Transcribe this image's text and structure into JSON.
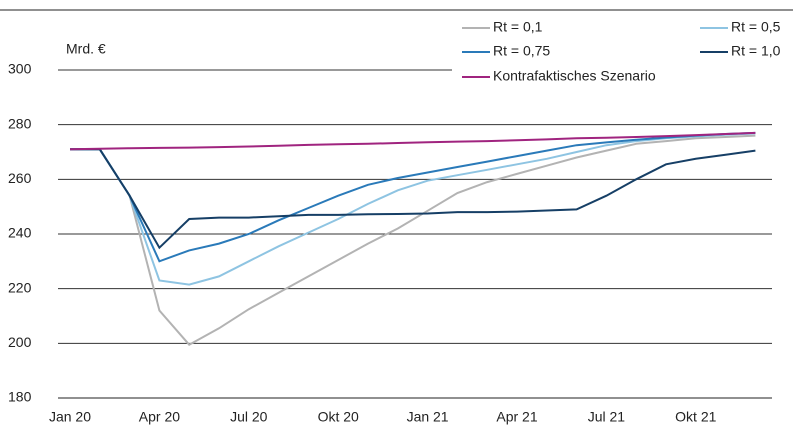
{
  "chart_data": {
    "type": "line",
    "unit_label": "Mrd. €",
    "categories": [
      "Jan 20",
      null,
      null,
      "Apr 20",
      null,
      null,
      "Jul 20",
      null,
      null,
      "Okt 20",
      null,
      null,
      "Jan 21",
      null,
      null,
      "Apr 21",
      null,
      null,
      "Jul 21",
      null,
      null,
      "Okt 21",
      null,
      null
    ],
    "series": [
      {
        "name": "Rt = 0,1",
        "color": "#b3b3b3",
        "values": [
          271,
          271,
          254,
          212,
          199.5,
          205.5,
          212.5,
          218.5,
          224.5,
          230.5,
          236.5,
          242,
          248.5,
          255,
          259,
          262,
          265,
          268,
          270.5,
          273,
          274,
          275,
          275.5,
          276
        ]
      },
      {
        "name": "Rt = 0,5",
        "color": "#8ec4e2",
        "values": [
          271,
          271,
          254,
          223,
          221.5,
          224.5,
          230,
          235.5,
          240.5,
          245.5,
          251,
          256,
          259.5,
          261.5,
          263.5,
          265.5,
          267.5,
          270,
          272.5,
          274,
          275,
          275.7,
          276.3,
          276.8
        ]
      },
      {
        "name": "Rt = 0,75",
        "color": "#2a7ab9",
        "values": [
          271,
          271,
          254,
          230,
          234,
          236.5,
          240,
          245,
          249.5,
          254,
          258,
          260.5,
          262.5,
          264.5,
          266.5,
          268.5,
          270.5,
          272.5,
          273.5,
          274.5,
          275.3,
          276,
          276.6,
          277
        ]
      },
      {
        "name": "Rt = 1,0",
        "color": "#163f66",
        "values": [
          271,
          271,
          254,
          235,
          245.5,
          246,
          246,
          246.5,
          247,
          247,
          247.2,
          247.3,
          247.5,
          248,
          248,
          248.2,
          248.6,
          249,
          254,
          260,
          265.5,
          267.5,
          269,
          270.5
        ]
      },
      {
        "name": "Kontrafaktisches Szenario",
        "color": "#a0247f",
        "values": [
          271,
          271.2,
          271.4,
          271.5,
          271.6,
          271.8,
          272,
          272.3,
          272.6,
          272.8,
          273,
          273.3,
          273.6,
          273.8,
          274,
          274.3,
          274.6,
          275,
          275.2,
          275.5,
          275.8,
          276.2,
          276.6,
          277
        ]
      }
    ],
    "ylim": [
      180,
      300
    ],
    "yticks": [
      180,
      200,
      220,
      240,
      260,
      280,
      300
    ],
    "grid": true
  }
}
